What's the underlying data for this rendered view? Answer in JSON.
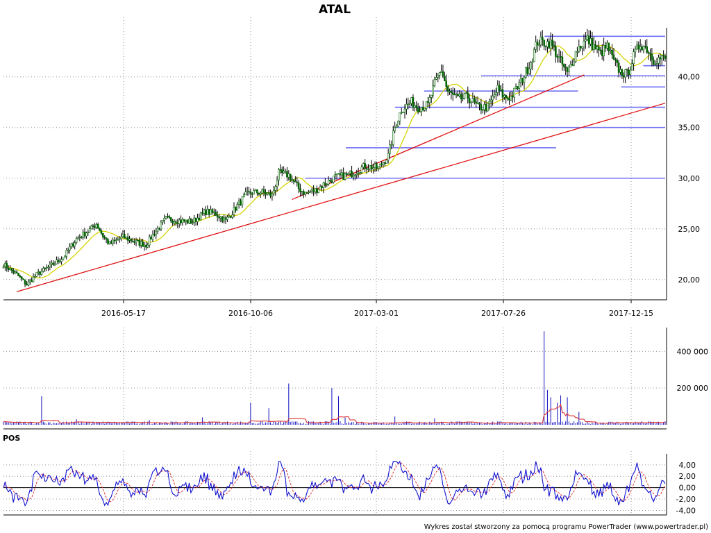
{
  "chart_data": [
    {
      "type": "candlestick",
      "title": "ATAL",
      "x_ticks": [
        "2016-05-17",
        "2016-10-06",
        "2017-03-01",
        "2017-07-26",
        "2017-12-15"
      ],
      "y_ticks": [
        "20,00",
        "25,00",
        "30,00",
        "35,00",
        "40,00"
      ],
      "ylim": [
        18.0,
        44.5
      ],
      "grid": true,
      "price_path": [
        [
          0,
          21.5
        ],
        [
          8,
          20.5
        ],
        [
          14,
          19.5
        ],
        [
          20,
          20.5
        ],
        [
          28,
          21.3
        ],
        [
          36,
          22.2
        ],
        [
          44,
          24.0
        ],
        [
          52,
          24.9
        ],
        [
          56,
          25.5
        ],
        [
          60,
          24.3
        ],
        [
          64,
          23.5
        ],
        [
          72,
          24.2
        ],
        [
          80,
          23.7
        ],
        [
          86,
          23.4
        ],
        [
          90,
          24.4
        ],
        [
          98,
          26.0
        ],
        [
          106,
          25.8
        ],
        [
          114,
          25.7
        ],
        [
          122,
          26.7
        ],
        [
          128,
          26.5
        ],
        [
          134,
          25.8
        ],
        [
          142,
          27.5
        ],
        [
          146,
          28.3
        ],
        [
          150,
          28.6
        ],
        [
          156,
          28.6
        ],
        [
          162,
          28.3
        ],
        [
          166,
          30.5
        ],
        [
          172,
          30.3
        ],
        [
          178,
          29.0
        ],
        [
          182,
          28.5
        ],
        [
          188,
          28.8
        ],
        [
          194,
          29.5
        ],
        [
          200,
          30.1
        ],
        [
          208,
          30.3
        ],
        [
          218,
          31.2
        ],
        [
          226,
          31.0
        ],
        [
          232,
          32.2
        ],
        [
          236,
          35.0
        ],
        [
          240,
          36.8
        ],
        [
          246,
          37.5
        ],
        [
          250,
          37.0
        ],
        [
          256,
          37.2
        ],
        [
          260,
          39.3
        ],
        [
          264,
          40.7
        ],
        [
          268,
          38.5
        ],
        [
          274,
          37.8
        ],
        [
          280,
          38.0
        ],
        [
          286,
          37.0
        ],
        [
          292,
          37.0
        ],
        [
          298,
          38.8
        ],
        [
          302,
          38.0
        ],
        [
          306,
          38.0
        ],
        [
          312,
          39.5
        ],
        [
          318,
          41.5
        ],
        [
          322,
          43.5
        ],
        [
          330,
          43.3
        ],
        [
          336,
          41.5
        ],
        [
          340,
          40.3
        ],
        [
          346,
          42.8
        ],
        [
          352,
          43.7
        ],
        [
          360,
          42.3
        ],
        [
          364,
          43.0
        ],
        [
          368,
          41.5
        ],
        [
          372,
          40.5
        ],
        [
          376,
          40.2
        ],
        [
          380,
          42.0
        ],
        [
          384,
          43.3
        ],
        [
          388,
          42.8
        ],
        [
          392,
          41.7
        ],
        [
          396,
          41.8
        ]
      ],
      "support_lines": [
        {
          "y": 30.0,
          "x_from": "2016-12-13",
          "x_to": "2018-01-26"
        },
        {
          "y": 33.0,
          "x_from": "2017-01-28",
          "x_to": "2017-09-24"
        },
        {
          "y": 35.0,
          "x_from": "2017-03-25",
          "x_to": "2018-01-26"
        },
        {
          "y": 37.0,
          "x_from": "2017-03-25",
          "x_to": "2018-01-26"
        },
        {
          "y": 38.6,
          "x_from": "2017-04-27",
          "x_to": "2017-10-19"
        },
        {
          "y": 40.1,
          "x_from": "2017-07-01",
          "x_to": "2018-01-26"
        },
        {
          "y": 39.0,
          "x_from": "2017-12-07",
          "x_to": "2018-01-26"
        },
        {
          "y": 41.1,
          "x_from": "2018-01-01",
          "x_to": "2018-01-26"
        },
        {
          "y": 44.0,
          "x_from": "2017-09-11",
          "x_to": "2018-01-26"
        }
      ],
      "trend_lines": [
        {
          "x0": "2016-01-20",
          "y0": 18.8,
          "x1": "2018-01-26",
          "y1": 37.4
        },
        {
          "x0": "2016-11-28",
          "y0": 27.9,
          "x1": "2017-10-26",
          "y1": 40.2
        }
      ],
      "colors": {
        "candle": "#006400",
        "wick": "#000000",
        "moving_average": "#d4d400",
        "trend": "#e01010",
        "support": "#6f6ff5",
        "grid": "#909090"
      }
    },
    {
      "type": "bar",
      "name": "volume",
      "y_ticks": [
        "200 000",
        "400 000"
      ],
      "ylim": [
        0,
        530000
      ],
      "spikes": [
        {
          "i": 23,
          "v": 155000
        },
        {
          "i": 44,
          "v": 30000
        },
        {
          "i": 88,
          "v": 25000
        },
        {
          "i": 120,
          "v": 40000
        },
        {
          "i": 149,
          "v": 120000
        },
        {
          "i": 160,
          "v": 90000
        },
        {
          "i": 172,
          "v": 225000
        },
        {
          "i": 198,
          "v": 200000
        },
        {
          "i": 202,
          "v": 155000
        },
        {
          "i": 206,
          "v": 40000
        },
        {
          "i": 236,
          "v": 45000
        },
        {
          "i": 260,
          "v": 35000
        },
        {
          "i": 326,
          "v": 510000
        },
        {
          "i": 328,
          "v": 190000
        },
        {
          "i": 330,
          "v": 150000
        },
        {
          "i": 334,
          "v": 120000
        },
        {
          "i": 336,
          "v": 160000
        },
        {
          "i": 340,
          "v": 150000
        },
        {
          "i": 347,
          "v": 70000
        }
      ],
      "colors": {
        "bar": "#1010c0",
        "average": "#e03030"
      }
    },
    {
      "type": "line",
      "name": "POS",
      "y_ticks": [
        "4,00",
        "2,00",
        "0,00",
        "-2,00",
        "-4,00"
      ],
      "ylim": [
        -4.8,
        5.2
      ],
      "colors": {
        "main": "#1010d0",
        "signal": "#e03030"
      }
    }
  ],
  "panel_label": "POS",
  "footer": "Wykres został stworzony za pomocą programu PowerTrader (www.powertrader.pl)"
}
